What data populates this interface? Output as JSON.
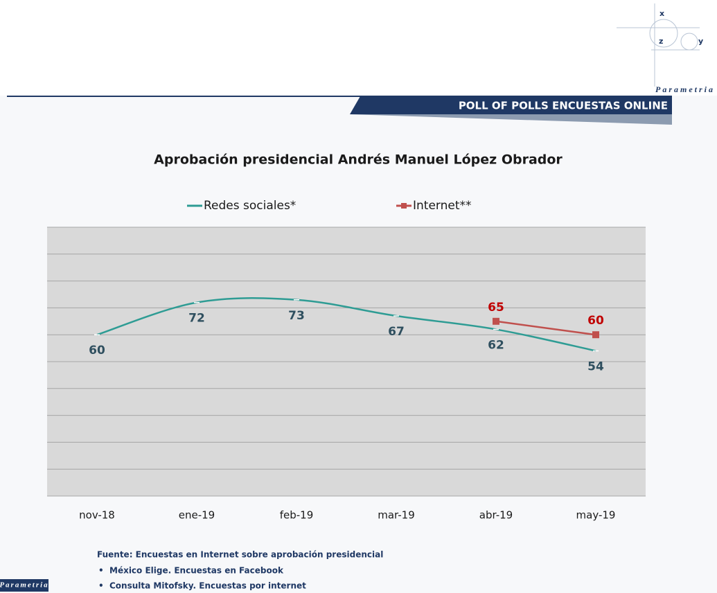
{
  "brand": {
    "name": "Parametria",
    "letters": [
      "x",
      "z",
      "y"
    ]
  },
  "header": "POLL OF POLLS ENCUESTAS ONLINE",
  "chart_data": {
    "type": "line",
    "title": "Aprobación presidencial Andrés Manuel López Obrador",
    "categories": [
      "nov-18",
      "ene-19",
      "feb-19",
      "mar-19",
      "abr-19",
      "may-19"
    ],
    "series": [
      {
        "name": "Redes sociales*",
        "color": "#2e9c94",
        "label_color": "#2f4f5f",
        "label_position": "below",
        "marker": "dash",
        "values": [
          60,
          72,
          73,
          67,
          62,
          54
        ]
      },
      {
        "name": "Internet**",
        "color": "#c0504d",
        "label_color": "#c00000",
        "label_position": "above",
        "marker": "square",
        "values": [
          null,
          null,
          null,
          null,
          65,
          60
        ]
      }
    ],
    "ylim": [
      0,
      100
    ],
    "yticks": [
      0,
      10,
      20,
      30,
      40,
      50,
      60,
      70,
      80,
      90,
      100
    ],
    "grid": true,
    "legend": "top"
  },
  "footnote": {
    "source": "Fuente: Encuestas en Internet sobre aprobación presidencial",
    "items": [
      "México Elige. Encuestas en Facebook",
      "Consulta Mitofsky. Encuestas por internet"
    ]
  }
}
